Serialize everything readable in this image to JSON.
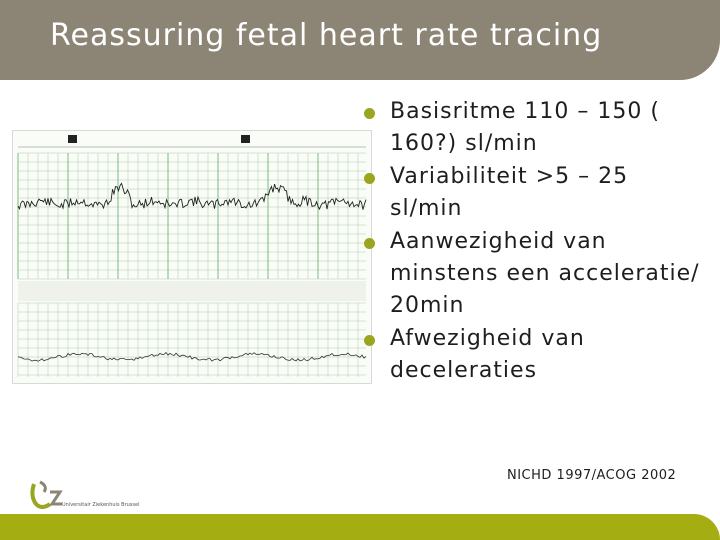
{
  "header": {
    "title": "Reassuring fetal heart rate tracing"
  },
  "bullets": [
    {
      "text": "Basisritme 110 – 150 ( 160?) sl/min"
    },
    {
      "text": "Variabiliteit >5 – 25 sl/min"
    },
    {
      "text": "Aanwezigheid van minstens een acceleratie/ 20min"
    },
    {
      "text": "Afwezigheid van deceleraties"
    }
  ],
  "reference": "NICHD 1997/ACOG 2002",
  "logo": {
    "name": "uz-brussel-logo",
    "text": "Universitair Ziekenhuis Brussel"
  },
  "colors": {
    "header": "#8c8576",
    "accent": "#a4ad12",
    "bullet": "#9aa520",
    "grid": "#a8cfa8"
  }
}
